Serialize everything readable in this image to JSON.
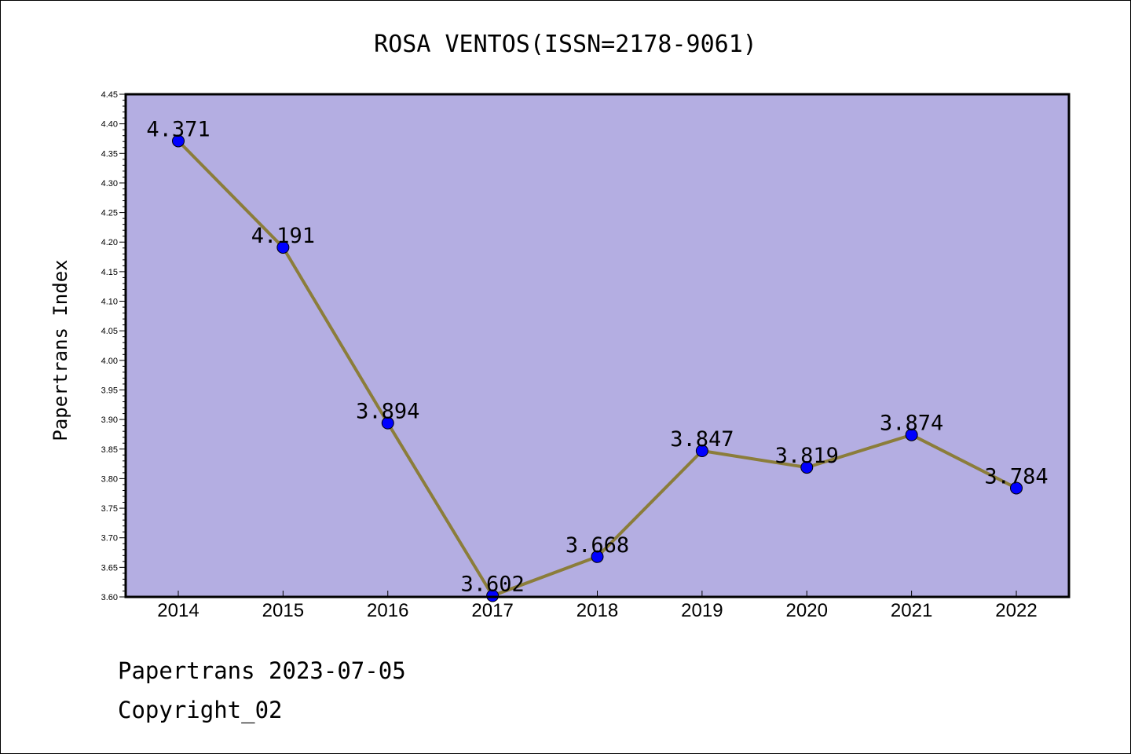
{
  "chart_data": {
    "type": "line",
    "title": "ROSA VENTOS(ISSN=2178-9061)",
    "ylabel": "Papertrans Index",
    "xlabel": "",
    "categories": [
      "2014",
      "2015",
      "2016",
      "2017",
      "2018",
      "2019",
      "2020",
      "2021",
      "2022"
    ],
    "values": [
      4.371,
      4.191,
      3.894,
      3.602,
      3.668,
      3.847,
      3.819,
      3.874,
      3.784
    ],
    "data_labels": [
      "4.371",
      "4.191",
      "3.894",
      "3.602",
      "3.668",
      "3.847",
      "3.819",
      "3.874",
      "3.784"
    ],
    "ylim": [
      3.6,
      4.45
    ],
    "yticks": [
      "3.60",
      "3.65",
      "3.70",
      "3.75",
      "3.80",
      "3.85",
      "3.90",
      "3.95",
      "4.00",
      "4.05",
      "4.10",
      "4.15",
      "4.20",
      "4.25",
      "4.30",
      "4.35",
      "4.40",
      "4.45"
    ],
    "grid": false,
    "legend": "none",
    "colors": {
      "plot_background": "#b4aee2",
      "line": "#8b7d3a",
      "marker": "#0000ff"
    }
  },
  "footer": {
    "date_line": "Papertrans 2023-07-05",
    "copyright_line": "Copyright_02"
  }
}
